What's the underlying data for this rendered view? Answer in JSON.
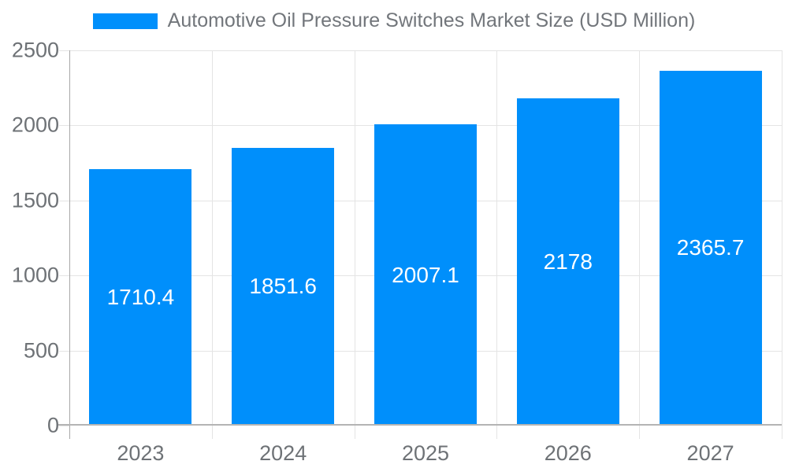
{
  "legend": {
    "label": "Automotive Oil Pressure Switches Market Size (USD Million)"
  },
  "chart_data": {
    "type": "bar",
    "title": "Automotive Oil Pressure Switches Market Size (USD Million)",
    "categories": [
      "2023",
      "2024",
      "2025",
      "2026",
      "2027"
    ],
    "values": [
      1710.4,
      1851.6,
      2007.1,
      2178,
      2365.7
    ],
    "data_labels": [
      "1710.4",
      "1851.6",
      "2007.1",
      "2178",
      "2365.7"
    ],
    "xlabel": "",
    "ylabel": "",
    "ylim": [
      0,
      2500
    ],
    "yticks": [
      0,
      500,
      1000,
      1500,
      2000,
      2500
    ],
    "grid": true,
    "legend_position": "top"
  },
  "colors": {
    "bar": "#008FFB",
    "grid_line": "#e4e4e4",
    "x_axis_line": "#b4b4b4",
    "y_axis_line": "#a8a8a8",
    "axis_label_text": "#6e7276",
    "legend_text": "#72767b",
    "data_label_text": "#ffffff",
    "background": "#ffffff"
  }
}
